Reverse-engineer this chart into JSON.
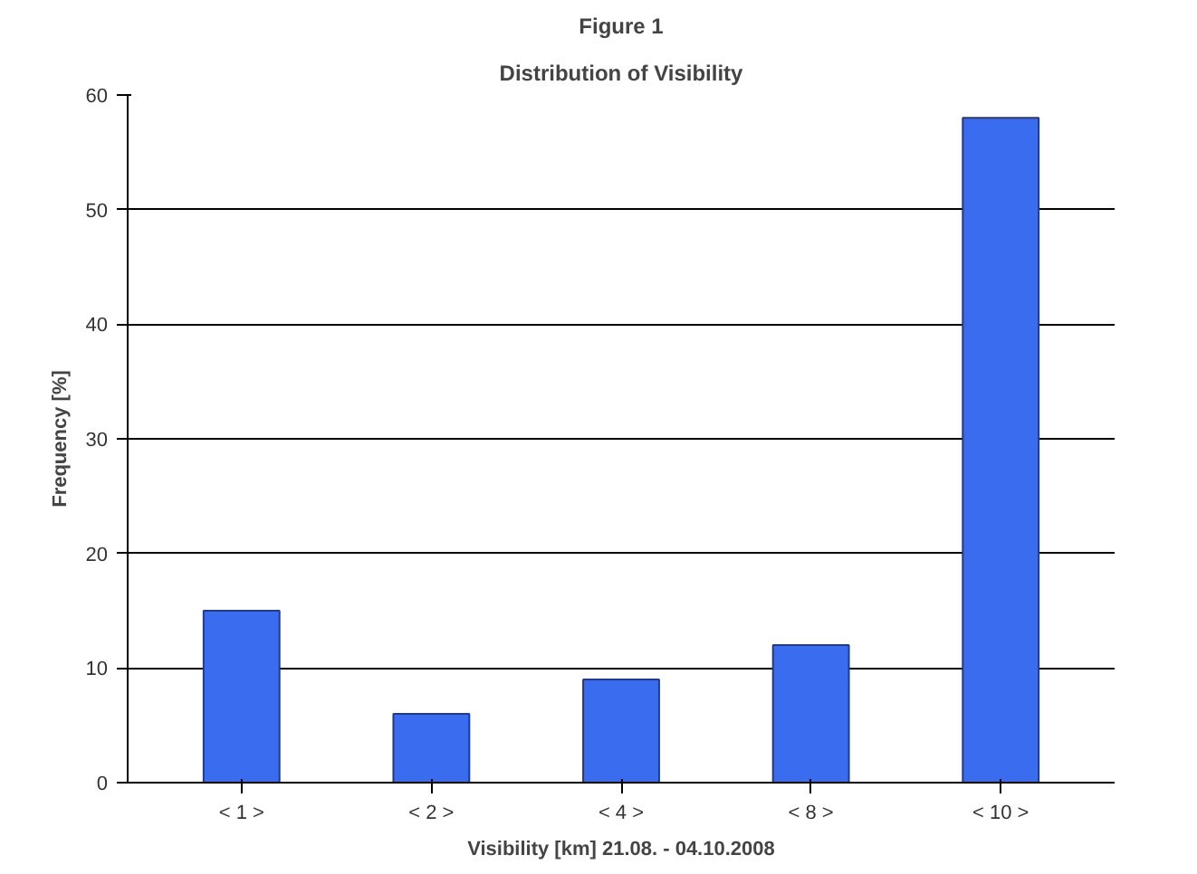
{
  "chart_data": {
    "type": "bar",
    "title": "Figure 1",
    "subtitle": "Distribution of Visibility",
    "xlabel": "Visibility [km] 21.08. - 04.10.2008",
    "ylabel": "Frequency [%]",
    "categories": [
      "< 1 >",
      "< 2 >",
      "< 4 >",
      "< 8 >",
      "< 10 >"
    ],
    "values": [
      15,
      6,
      9,
      12,
      58
    ],
    "color": "#3a6cf0",
    "ylim": [
      0,
      60
    ],
    "yticks": [
      0,
      10,
      20,
      30,
      40,
      50,
      60
    ],
    "grid": "y"
  }
}
